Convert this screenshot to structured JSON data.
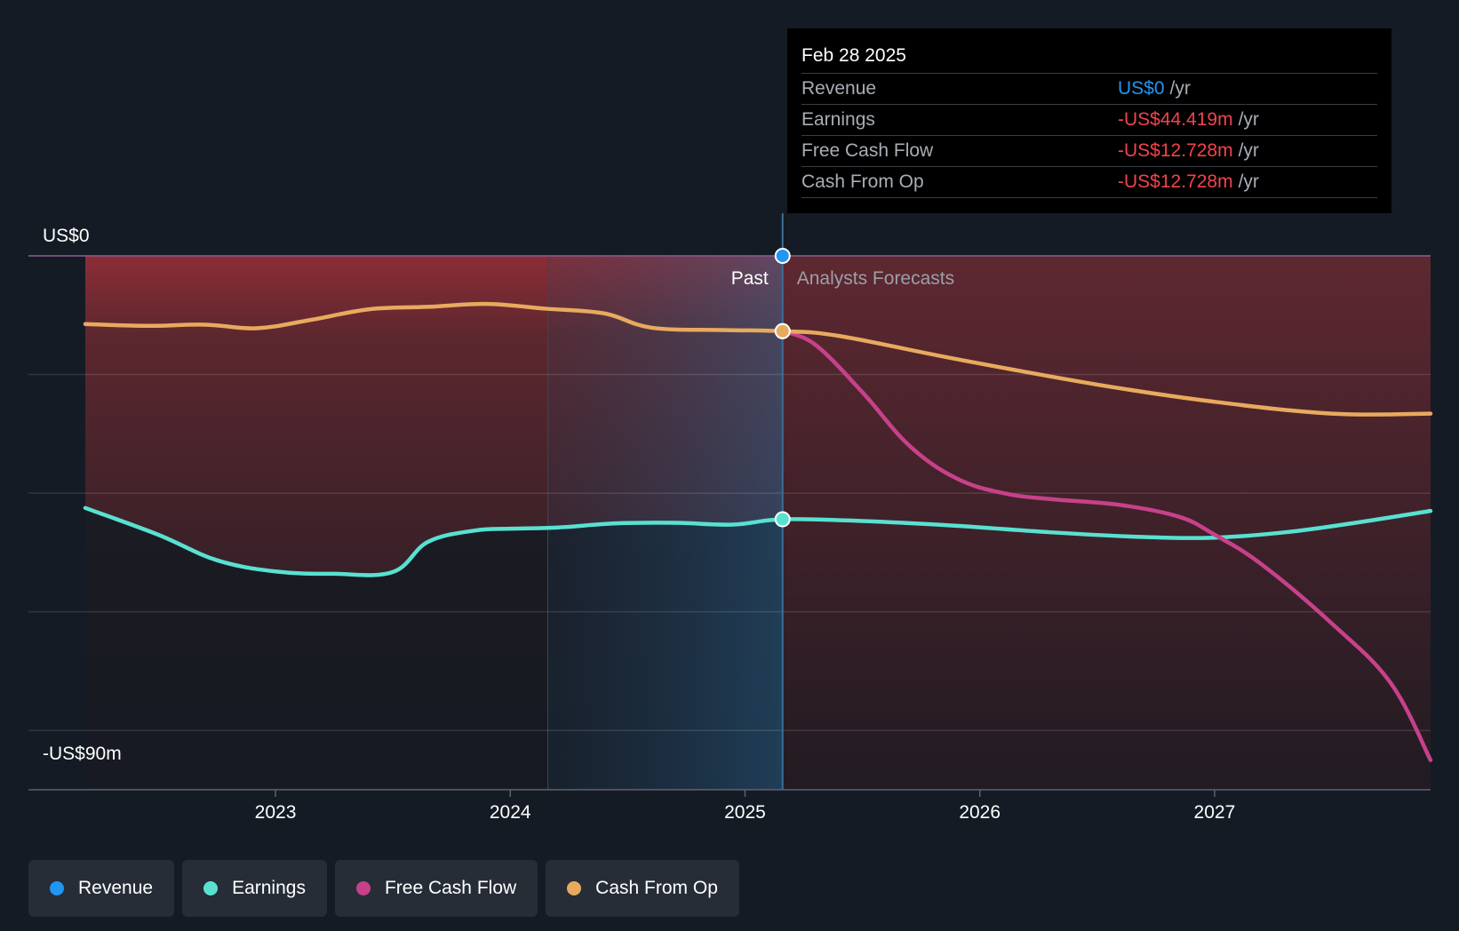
{
  "tooltip": {
    "date": "Feb 28 2025",
    "rows": [
      {
        "label": "Revenue",
        "value": "US$0",
        "unit": "/yr",
        "color": "#2196f3"
      },
      {
        "label": "Earnings",
        "value": "-US$44.419m",
        "unit": "/yr",
        "color": "#f0444b"
      },
      {
        "label": "Free Cash Flow",
        "value": "-US$12.728m",
        "unit": "/yr",
        "color": "#f0444b"
      },
      {
        "label": "Cash From Op",
        "value": "-US$12.728m",
        "unit": "/yr",
        "color": "#f0444b"
      }
    ]
  },
  "legend": [
    {
      "label": "Revenue",
      "color": "#2196f3"
    },
    {
      "label": "Earnings",
      "color": "#58e1d1"
    },
    {
      "label": "Free Cash Flow",
      "color": "#c7418a"
    },
    {
      "label": "Cash From Op",
      "color": "#e8aa5e"
    }
  ],
  "chart_data": {
    "type": "line",
    "y_labels": {
      "top": "US$0",
      "bottom": "-US$90m"
    },
    "ylim": [
      -90,
      0
    ],
    "x_ticks": [
      2023,
      2024,
      2025,
      2026,
      2027
    ],
    "xlim": [
      2022.19,
      2027.92
    ],
    "past_label": "Past",
    "forecast_label": "Analysts Forecasts",
    "divider_x": 2025.16,
    "shaded_past_from": 2024.16,
    "series": [
      {
        "name": "Revenue",
        "color": "#2196f3",
        "points": [
          [
            2025.16,
            0
          ]
        ]
      },
      {
        "name": "Earnings",
        "color": "#58e1d1",
        "points": [
          [
            2022.19,
            -42.5
          ],
          [
            2022.5,
            -47
          ],
          [
            2022.75,
            -51.3
          ],
          [
            2023.0,
            -53.2
          ],
          [
            2023.25,
            -53.6
          ],
          [
            2023.5,
            -53.3
          ],
          [
            2023.65,
            -48.2
          ],
          [
            2023.85,
            -46.3
          ],
          [
            2024.0,
            -46.0
          ],
          [
            2024.2,
            -45.8
          ],
          [
            2024.45,
            -45.1
          ],
          [
            2024.7,
            -45.0
          ],
          [
            2024.95,
            -45.3
          ],
          [
            2025.16,
            -44.4
          ],
          [
            2025.5,
            -44.7
          ],
          [
            2025.9,
            -45.5
          ],
          [
            2026.3,
            -46.6
          ],
          [
            2026.7,
            -47.4
          ],
          [
            2027.0,
            -47.5
          ],
          [
            2027.3,
            -46.6
          ],
          [
            2027.6,
            -45.0
          ],
          [
            2027.92,
            -43.0
          ]
        ]
      },
      {
        "name": "Free Cash Flow",
        "color": "#c7418a",
        "points": [
          [
            2025.16,
            -12.7
          ],
          [
            2025.3,
            -15.0
          ],
          [
            2025.5,
            -23.0
          ],
          [
            2025.7,
            -32.0
          ],
          [
            2025.9,
            -37.5
          ],
          [
            2026.1,
            -40.0
          ],
          [
            2026.3,
            -41.0
          ],
          [
            2026.6,
            -42.0
          ],
          [
            2026.85,
            -44.0
          ],
          [
            2027.0,
            -47.0
          ],
          [
            2027.2,
            -52.0
          ],
          [
            2027.5,
            -62.0
          ],
          [
            2027.75,
            -72.0
          ],
          [
            2027.92,
            -85.0
          ]
        ]
      },
      {
        "name": "Cash From Op",
        "color": "#e8aa5e",
        "points": [
          [
            2022.19,
            -11.5
          ],
          [
            2022.45,
            -11.8
          ],
          [
            2022.7,
            -11.6
          ],
          [
            2022.92,
            -12.2
          ],
          [
            2023.15,
            -10.8
          ],
          [
            2023.4,
            -9.0
          ],
          [
            2023.65,
            -8.6
          ],
          [
            2023.9,
            -8.1
          ],
          [
            2024.15,
            -8.9
          ],
          [
            2024.4,
            -9.7
          ],
          [
            2024.6,
            -12.1
          ],
          [
            2024.9,
            -12.5
          ],
          [
            2025.16,
            -12.7
          ],
          [
            2025.4,
            -13.5
          ],
          [
            2025.9,
            -17.4
          ],
          [
            2026.5,
            -21.7
          ],
          [
            2027.0,
            -24.6
          ],
          [
            2027.5,
            -26.6
          ],
          [
            2027.92,
            -26.6
          ]
        ]
      }
    ]
  }
}
